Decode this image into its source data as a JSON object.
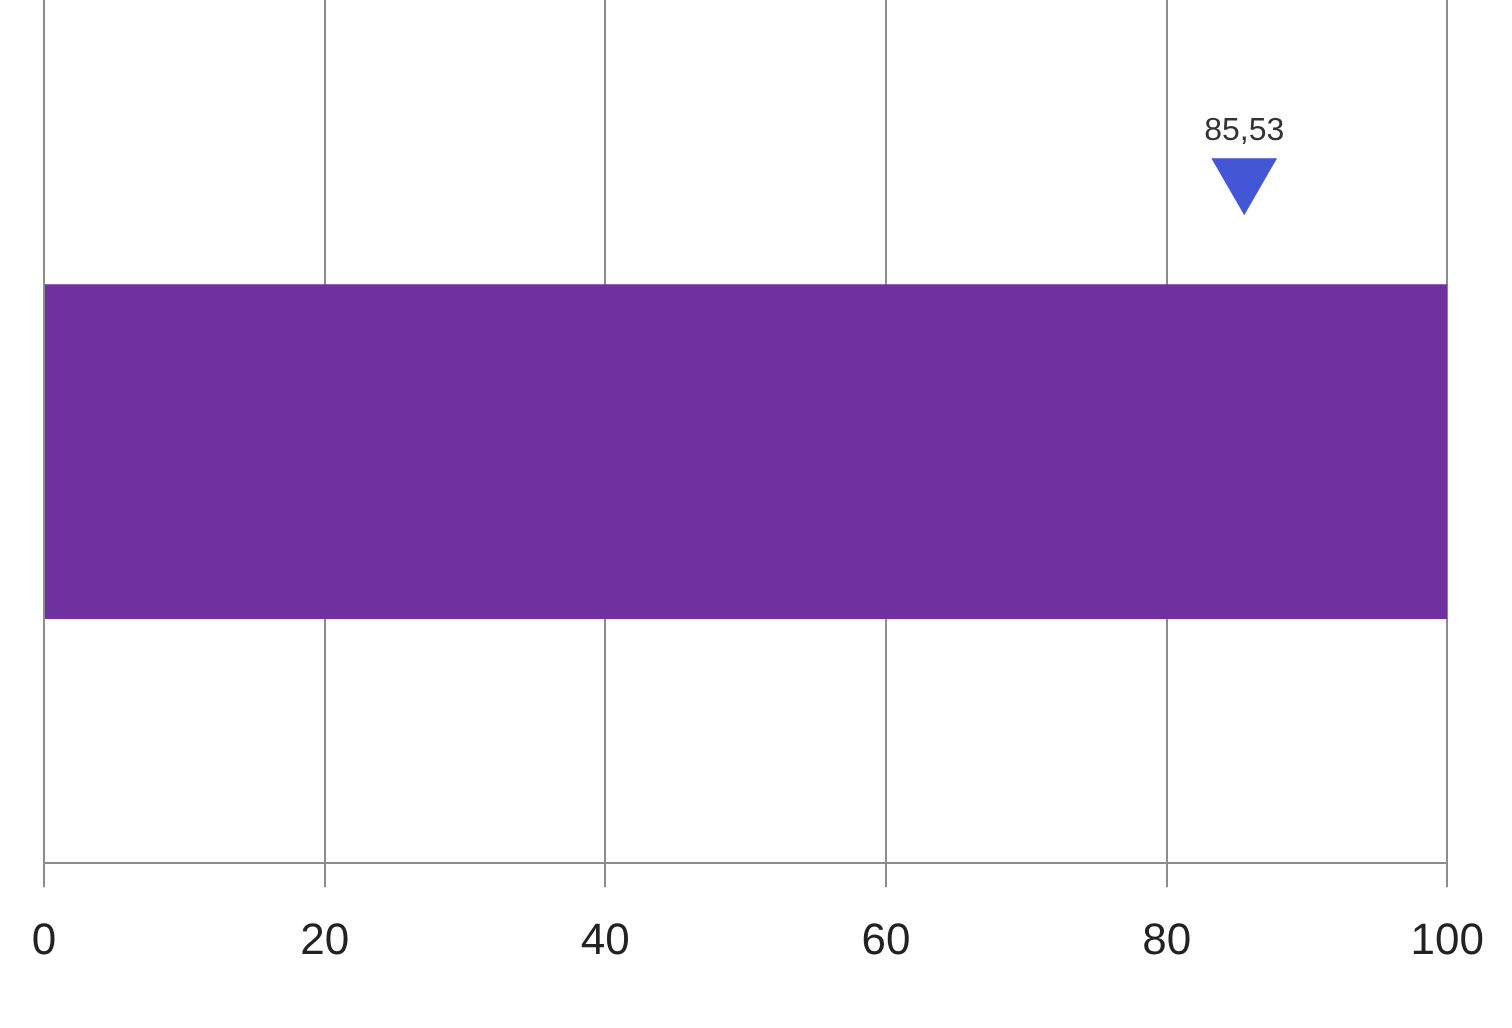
{
  "chart_data": {
    "type": "bar",
    "orientation": "horizontal",
    "categories": [
      null,
      null,
      null
    ],
    "marker": "triangle",
    "xlim": [
      0,
      100
    ],
    "xticks": [
      0,
      20,
      40,
      60,
      80,
      100
    ],
    "grid": "x",
    "series": [
      {
        "values": [
          null,
          100,
          null
        ],
        "color": "#7030a0"
      },
      {
        "type": "scatter",
        "values": [
          85.53,
          null,
          null
        ],
        "color": "#4356d6",
        "value_labels": [
          "85,53",
          null,
          null
        ]
      }
    ]
  }
}
